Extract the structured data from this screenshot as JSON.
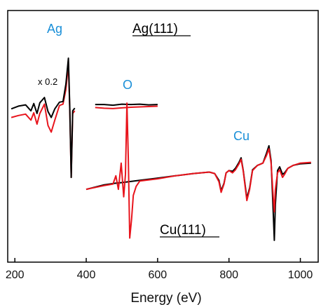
{
  "chart_data": {
    "type": "line",
    "xlabel": "Energy (eV)",
    "x_ticks": [
      200,
      400,
      600,
      800,
      1000
    ],
    "xlim": [
      180,
      1050
    ],
    "y_axis": "arbitrary units (no ticks)",
    "colors": {
      "black_series": "#000000",
      "red_series": "#e8141c",
      "labels_blue": "#1a8fd8"
    },
    "annotations": {
      "ag_peak": "Ag",
      "oxygen_peak": "O",
      "cu_peak": "Cu",
      "ag_sample": "Ag(111)",
      "cu_sample": "Cu(111)",
      "scale_note": "x 0.2"
    },
    "segments": [
      {
        "region": "Ag (scaled x 0.2)",
        "series": [
          {
            "color": "black",
            "points": [
              [
                190,
                0.05
              ],
              [
                210,
                0.09
              ],
              [
                230,
                0.11
              ],
              [
                245,
                0.02
              ],
              [
                253,
                0.13
              ],
              [
                262,
                -0.02
              ],
              [
                270,
                0.14
              ],
              [
                283,
                0.22
              ],
              [
                293,
                0.01
              ],
              [
                302,
                -0.08
              ],
              [
                312,
                0.05
              ],
              [
                325,
                0.15
              ],
              [
                335,
                0.16
              ],
              [
                343,
                0.42
              ],
              [
                350,
                0.81
              ],
              [
                354,
                0.05
              ],
              [
                358,
                -0.98
              ],
              [
                362,
                0.02
              ],
              [
                368,
                0.06
              ]
            ]
          },
          {
            "color": "red",
            "points": [
              [
                190,
                -0.08
              ],
              [
                210,
                -0.05
              ],
              [
                230,
                -0.03
              ],
              [
                245,
                -0.12
              ],
              [
                253,
                -0.01
              ],
              [
                262,
                -0.18
              ],
              [
                270,
                -0.02
              ],
              [
                283,
                0.12
              ],
              [
                293,
                -0.2
              ],
              [
                302,
                -0.3
              ],
              [
                312,
                -0.12
              ],
              [
                325,
                0.1
              ],
              [
                335,
                0.12
              ],
              [
                343,
                0.34
              ],
              [
                350,
                0.73
              ],
              [
                354,
                0.02
              ],
              [
                358,
                -0.98
              ],
              [
                362,
                -0.02
              ],
              [
                368,
                0.02
              ]
            ]
          }
        ]
      },
      {
        "region": "O",
        "series": [
          {
            "color": "black",
            "points": [
              [
                425,
                0.06
              ],
              [
                450,
                0.06
              ],
              [
                475,
                0.04
              ],
              [
                500,
                0.07
              ],
              [
                525,
                0.06
              ],
              [
                550,
                0.07
              ],
              [
                575,
                0.05
              ],
              [
                600,
                0.06
              ]
            ]
          },
          {
            "color": "red",
            "points": [
              [
                425,
                -0.03
              ],
              [
                450,
                -0.05
              ],
              [
                475,
                -0.06
              ],
              [
                500,
                -0.04
              ],
              [
                525,
                -0.02
              ],
              [
                550,
                -0.01
              ],
              [
                575,
                0.0
              ],
              [
                600,
                0.01
              ]
            ]
          }
        ]
      },
      {
        "region": "Cu",
        "series": [
          {
            "color": "black",
            "points": [
              [
                400,
                -0.3
              ],
              [
                450,
                -0.24
              ],
              [
                480,
                -0.22
              ],
              [
                500,
                -0.21
              ],
              [
                550,
                -0.18
              ],
              [
                600,
                -0.15
              ],
              [
                650,
                -0.12
              ],
              [
                700,
                -0.09
              ],
              [
                745,
                -0.07
              ],
              [
                760,
                -0.09
              ],
              [
                772,
                -0.18
              ],
              [
                778,
                -0.32
              ],
              [
                786,
                -0.22
              ],
              [
                792,
                -0.08
              ],
              [
                800,
                -0.05
              ],
              [
                810,
                -0.06
              ],
              [
                818,
                -0.02
              ],
              [
                828,
                0.06
              ],
              [
                834,
                0.12
              ],
              [
                840,
                -0.05
              ],
              [
                850,
                -0.42
              ],
              [
                858,
                -0.28
              ],
              [
                866,
                -0.04
              ],
              [
                880,
                0.02
              ],
              [
                895,
                0.05
              ],
              [
                905,
                0.18
              ],
              [
                912,
                0.28
              ],
              [
                918,
                0.08
              ],
              [
                924,
                -0.6
              ],
              [
                927,
                -0.98
              ],
              [
                930,
                -0.5
              ],
              [
                936,
                -0.05
              ],
              [
                942,
                0.0
              ],
              [
                950,
                -0.1
              ],
              [
                956,
                -0.08
              ],
              [
                965,
                -0.02
              ],
              [
                980,
                0.02
              ],
              [
                1000,
                0.04
              ],
              [
                1030,
                0.05
              ]
            ]
          },
          {
            "color": "red",
            "points": [
              [
                400,
                -0.3
              ],
              [
                450,
                -0.25
              ],
              [
                475,
                -0.23
              ],
              [
                483,
                -0.12
              ],
              [
                490,
                -0.3
              ],
              [
                498,
                0.05
              ],
              [
                505,
                -0.4
              ],
              [
                510,
                -0.1
              ],
              [
                514,
                0.85
              ],
              [
                518,
                0.1
              ],
              [
                522,
                -0.95
              ],
              [
                527,
                -0.7
              ],
              [
                532,
                -0.38
              ],
              [
                540,
                -0.26
              ],
              [
                550,
                -0.19
              ],
              [
                600,
                -0.16
              ],
              [
                650,
                -0.12
              ],
              [
                700,
                -0.09
              ],
              [
                745,
                -0.07
              ],
              [
                760,
                -0.09
              ],
              [
                772,
                -0.2
              ],
              [
                778,
                -0.34
              ],
              [
                786,
                -0.23
              ],
              [
                792,
                -0.08
              ],
              [
                800,
                -0.05
              ],
              [
                810,
                -0.08
              ],
              [
                818,
                -0.04
              ],
              [
                828,
                0.04
              ],
              [
                834,
                0.1
              ],
              [
                840,
                -0.06
              ],
              [
                850,
                -0.45
              ],
              [
                858,
                -0.3
              ],
              [
                866,
                -0.05
              ],
              [
                880,
                0.02
              ],
              [
                895,
                0.05
              ],
              [
                905,
                0.15
              ],
              [
                912,
                0.24
              ],
              [
                918,
                0.05
              ],
              [
                924,
                -0.4
              ],
              [
                927,
                -0.6
              ],
              [
                930,
                -0.3
              ],
              [
                936,
                -0.08
              ],
              [
                942,
                -0.04
              ],
              [
                950,
                -0.14
              ],
              [
                956,
                -0.1
              ],
              [
                965,
                -0.02
              ],
              [
                980,
                0.02
              ],
              [
                1000,
                0.05
              ],
              [
                1030,
                0.06
              ]
            ]
          }
        ]
      }
    ]
  }
}
